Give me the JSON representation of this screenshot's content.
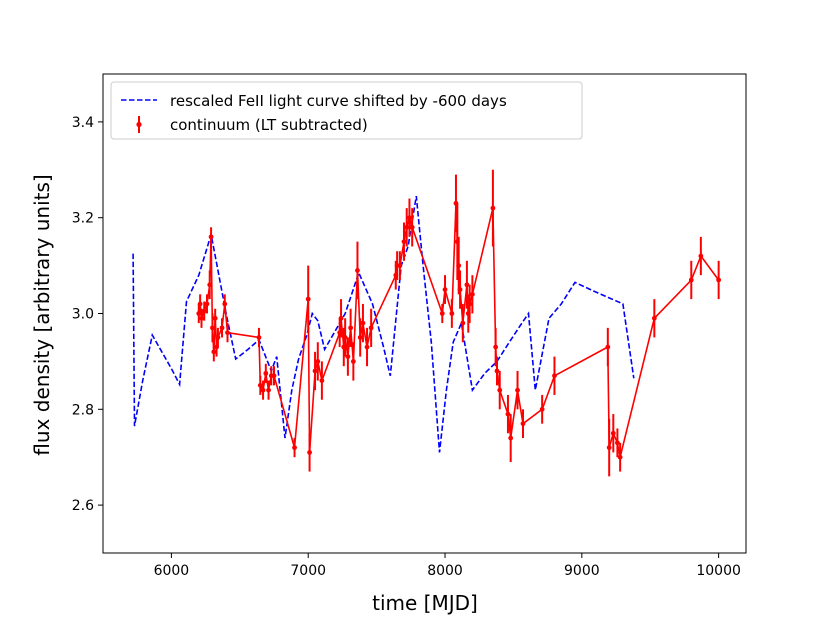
{
  "chart_data": {
    "type": "line",
    "title": "",
    "xlabel": "time [MJD]",
    "ylabel": "flux density [arbitrary units]",
    "xlim": [
      5500,
      10200
    ],
    "ylim": [
      2.5,
      3.5
    ],
    "xticks": [
      6000,
      7000,
      8000,
      9000,
      10000
    ],
    "yticks": [
      2.6,
      2.8,
      3.0,
      3.2,
      3.4
    ],
    "xtick_labels": [
      "6000",
      "7000",
      "8000",
      "9000",
      "10000"
    ],
    "ytick_labels": [
      "2.6",
      "2.8",
      "3.0",
      "3.2",
      "3.4"
    ],
    "legend_position": "top-left",
    "series": [
      {
        "name": "rescaled FeII light curve shifted by -600 days",
        "label": "rescaled FeII light curve shifted by -600 days",
        "style": "dashed",
        "color": "#0000ff",
        "x": [
          5720,
          5730,
          5790,
          5860,
          5930,
          6000,
          6060,
          6110,
          6200,
          6290,
          6330,
          6400,
          6470,
          6560,
          6640,
          6730,
          6770,
          6830,
          6880,
          6930,
          6990,
          7030,
          7070,
          7120,
          7200,
          7270,
          7370,
          7470,
          7550,
          7600,
          7680,
          7730,
          7790,
          7840,
          7900,
          7960,
          8010,
          8060,
          8120,
          8200,
          8290,
          8380,
          8470,
          8550,
          8610,
          8660,
          8760,
          8850,
          8950,
          9100,
          9300,
          9380
        ],
        "y": [
          3.125,
          2.765,
          2.86,
          2.955,
          2.92,
          2.885,
          2.852,
          3.025,
          3.08,
          3.165,
          3.105,
          3.0,
          2.905,
          2.925,
          2.945,
          2.88,
          2.91,
          2.74,
          2.84,
          2.905,
          2.955,
          3.0,
          2.985,
          2.925,
          2.965,
          3.0,
          3.085,
          3.02,
          2.93,
          2.87,
          3.1,
          3.14,
          3.245,
          3.1,
          2.94,
          2.71,
          2.84,
          2.94,
          2.98,
          2.84,
          2.875,
          2.9,
          2.94,
          2.975,
          3.0,
          2.84,
          2.99,
          3.02,
          3.065,
          3.045,
          3.02,
          2.865
        ]
      },
      {
        "name": "continuum (LT subtracted)",
        "label": "continuum (LT subtracted)",
        "style": "solid-errorbar",
        "color": "#ff0000",
        "x": [
          6200,
          6210,
          6220,
          6240,
          6260,
          6280,
          6290,
          6300,
          6310,
          6320,
          6330,
          6340,
          6370,
          6390,
          6410,
          6640,
          6650,
          6670,
          6690,
          6710,
          6730,
          6750,
          6900,
          7000,
          7010,
          7050,
          7070,
          7100,
          7230,
          7240,
          7260,
          7270,
          7290,
          7310,
          7330,
          7360,
          7380,
          7400,
          7430,
          7460,
          7640,
          7650,
          7670,
          7700,
          7720,
          7740,
          7760,
          7980,
          8000,
          8050,
          8080,
          8090,
          8100,
          8110,
          8130,
          8160,
          8170,
          8180,
          8200,
          8350,
          8370,
          8380,
          8400,
          8460,
          8480,
          8530,
          8570,
          8710,
          8800,
          9190,
          9200,
          9230,
          9260,
          9280,
          9530,
          9800,
          9870,
          10000
        ],
        "y": [
          3.0,
          3.02,
          2.99,
          3.005,
          3.02,
          3.06,
          3.16,
          2.97,
          2.92,
          2.99,
          2.93,
          2.95,
          2.97,
          3.02,
          2.96,
          2.95,
          2.85,
          2.84,
          2.875,
          2.84,
          2.87,
          2.87,
          2.72,
          3.03,
          2.71,
          2.88,
          2.9,
          2.86,
          2.96,
          2.99,
          2.93,
          2.95,
          2.91,
          2.97,
          2.9,
          3.09,
          2.95,
          2.98,
          2.93,
          2.97,
          3.08,
          3.1,
          3.1,
          3.15,
          3.18,
          3.2,
          3.18,
          3.0,
          3.05,
          3.0,
          3.23,
          3.15,
          3.1,
          3.05,
          2.98,
          3.06,
          3.0,
          3.02,
          3.04,
          3.22,
          2.93,
          2.88,
          2.84,
          2.79,
          2.74,
          2.84,
          2.77,
          2.8,
          2.87,
          2.93,
          2.72,
          2.75,
          2.73,
          2.7,
          2.99,
          3.07,
          3.12,
          3.07
        ],
        "yerr": [
          0.02,
          0.02,
          0.02,
          0.02,
          0.02,
          0.03,
          0.02,
          0.03,
          0.02,
          0.02,
          0.02,
          0.02,
          0.02,
          0.02,
          0.02,
          0.02,
          0.02,
          0.02,
          0.02,
          0.02,
          0.02,
          0.02,
          0.02,
          0.07,
          0.04,
          0.04,
          0.04,
          0.04,
          0.03,
          0.04,
          0.04,
          0.04,
          0.04,
          0.04,
          0.04,
          0.06,
          0.04,
          0.04,
          0.04,
          0.04,
          0.03,
          0.03,
          0.03,
          0.04,
          0.04,
          0.04,
          0.04,
          0.02,
          0.03,
          0.03,
          0.06,
          0.08,
          0.06,
          0.04,
          0.04,
          0.05,
          0.04,
          0.04,
          0.04,
          0.08,
          0.04,
          0.03,
          0.04,
          0.04,
          0.05,
          0.04,
          0.03,
          0.03,
          0.04,
          0.04,
          0.06,
          0.04,
          0.03,
          0.03,
          0.04,
          0.04,
          0.04,
          0.04
        ]
      }
    ]
  }
}
